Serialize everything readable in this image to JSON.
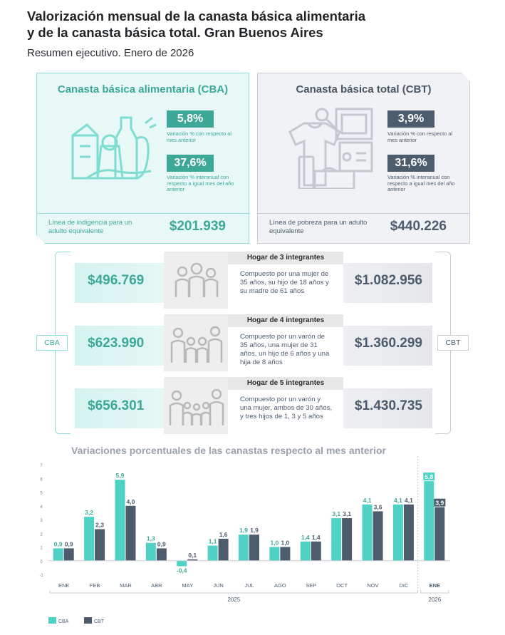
{
  "header": {
    "title_line1": "Valorización mensual de la canasta básica alimentaria",
    "title_line2": "y de la canasta básica total. Gran Buenos Aires",
    "subtitle": "Resumen ejecutivo. Enero de 2026"
  },
  "colors": {
    "cba": "#4fd1c5",
    "cbt": "#4d5c6d",
    "cba_text": "#3ea898"
  },
  "cba_card": {
    "title": "Canasta básica alimentaria (CBA)",
    "monthly_pct": "5,8%",
    "monthly_note": "Variación % con respecto al mes anterior",
    "annual_pct": "37,6%",
    "annual_note": "Variación % interanual con respecto a igual mes del año anterior",
    "line_label": "Línea de indigencia para un adulto equivalente",
    "line_value": "$201.939"
  },
  "cbt_card": {
    "title": "Canasta básica total (CBT)",
    "monthly_pct": "3,9%",
    "monthly_note": "Variación % con respecto al mes anterior",
    "annual_pct": "31,6%",
    "annual_note": "Variación % interanual con respecto a igual mes del año anterior",
    "line_label": "Línea de pobreza para un adulto equivalente",
    "line_value": "$440.226"
  },
  "side_tags": {
    "cba": "CBA",
    "cbt": "CBT"
  },
  "households": [
    {
      "title": "Hogar de 3 integrantes",
      "description": "Compuesto por una mujer de 35 años, su hijo de 18 años y su madre de 61 años",
      "cba": "$496.769",
      "cbt": "$1.082.956"
    },
    {
      "title": "Hogar de 4 integrantes",
      "description": "Compuesto por un varón de 35 años, una mujer de 31 años, un hijo de 6 años y una hija de 8 años",
      "cba": "$623.990",
      "cbt": "$1.360.299"
    },
    {
      "title": "Hogar de 5 integrantes",
      "description": "Compuesto por un varón y una mujer, ambos de 30 años, y tres hijos de 1, 3 y 5 años",
      "cba": "$656.301",
      "cbt": "$1.430.735"
    }
  ],
  "chart_data": {
    "type": "bar",
    "title": "Variaciones porcentuales de las canastas respecto al mes anterior",
    "categories": [
      "ENE",
      "FEB",
      "MAR",
      "ABR",
      "MAY",
      "JUN",
      "JUL",
      "AGO",
      "SEP",
      "OCT",
      "NOV",
      "DIC",
      "ENE"
    ],
    "year_groups": [
      {
        "label": "2025",
        "from": 0,
        "to": 11
      },
      {
        "label": "2026",
        "from": 12,
        "to": 12
      }
    ],
    "series": [
      {
        "name": "CBA",
        "values": [
          0.9,
          3.2,
          5.9,
          1.3,
          -0.4,
          1.1,
          1.9,
          1.0,
          1.4,
          3.1,
          4.1,
          4.1,
          5.8
        ],
        "labels": [
          "0,9",
          "3,2",
          "5,9",
          "1,3",
          "-0,4",
          "1,1",
          "1,9",
          "1,0",
          "1,4",
          "3,1",
          "4,1",
          "4,1",
          "5,8"
        ]
      },
      {
        "name": "CBT",
        "values": [
          0.9,
          2.3,
          4.0,
          0.9,
          0.1,
          1.6,
          1.9,
          1.0,
          1.4,
          3.1,
          3.6,
          4.1,
          3.9
        ],
        "labels": [
          "0,9",
          "2,3",
          "4,0",
          "0,9",
          "0,1",
          "1,6",
          "1,9",
          "1,0",
          "1,4",
          "3,1",
          "3,6",
          "4,1",
          "3,9"
        ]
      }
    ],
    "yticks": [
      "7",
      "6",
      "5",
      "4",
      "3",
      "2",
      "1",
      "0",
      "-1"
    ],
    "ylim": [
      -1,
      7
    ],
    "legend_position": "bottom-left"
  }
}
